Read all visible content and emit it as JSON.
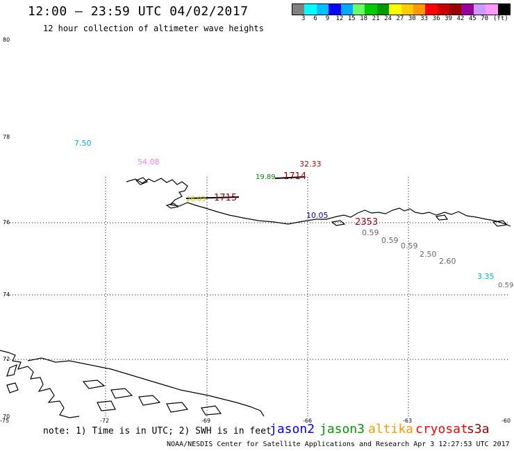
{
  "header": {
    "title": "12:00 – 23:59 UTC 04/02/2017",
    "subtitle": "12 hour collection of altimeter wave heights"
  },
  "color_scale": {
    "colors": [
      "#808080",
      "#00ffff",
      "#00bfff",
      "#0000ff",
      "#00aaff",
      "#66ff66",
      "#00cc00",
      "#009900",
      "#ffff00",
      "#ffcc00",
      "#ff9900",
      "#ff0000",
      "#cc0000",
      "#990000",
      "#990099",
      "#cc99ff",
      "#ff99ff",
      "#000000"
    ],
    "labels": [
      "3",
      "6",
      "9",
      "12",
      "15",
      "18",
      "21",
      "24",
      "27",
      "30",
      "33",
      "36",
      "39",
      "42",
      "45",
      "70"
    ],
    "unit": "(ft)"
  },
  "axes": {
    "lat_labels": [
      "80",
      "78",
      "76",
      "74",
      "72",
      "70"
    ],
    "lon_labels": [
      "-75",
      "-72",
      "-69",
      "-66",
      "-63",
      "-60"
    ]
  },
  "observations": [
    {
      "text": "7.50",
      "color": "#00aaff"
    },
    {
      "text": "54.08",
      "color": "#ff77ff"
    },
    {
      "text": "32.33",
      "color": "#cc0000"
    },
    {
      "text": "19.89",
      "color": "#008800"
    },
    {
      "text": "1714",
      "color": "#990000"
    },
    {
      "text": "26.03",
      "color": "#cccc00"
    },
    {
      "text": "1715",
      "color": "#990000"
    },
    {
      "text": "10.05",
      "color": "#0000cc"
    },
    {
      "text": "2353",
      "color": "#990000"
    },
    {
      "text": "0.59",
      "color": "#666666"
    },
    {
      "text": "0.59",
      "color": "#666666"
    },
    {
      "text": "0.59",
      "color": "#666666"
    },
    {
      "text": "2.50",
      "color": "#666666"
    },
    {
      "text": "2.60",
      "color": "#666666"
    },
    {
      "text": "3.35",
      "color": "#00bbbb"
    },
    {
      "text": "0.59",
      "color": "#666666"
    }
  ],
  "footer": {
    "note": "note:  1) Time is in UTC;  2) SWH is in feet",
    "legend": [
      {
        "label": "jason2",
        "color": "#0000ff"
      },
      {
        "label": "jason3",
        "color": "#009900"
      },
      {
        "label": "altika",
        "color": "#ff9900"
      },
      {
        "label": "cryosat",
        "color": "#ff0000"
      },
      {
        "label": "s3a",
        "color": "#990000"
      }
    ],
    "credit": "NOAA/NESDIS Center for Satellite Applications and Research    Apr  3 12:27:53 UTC 2017"
  }
}
